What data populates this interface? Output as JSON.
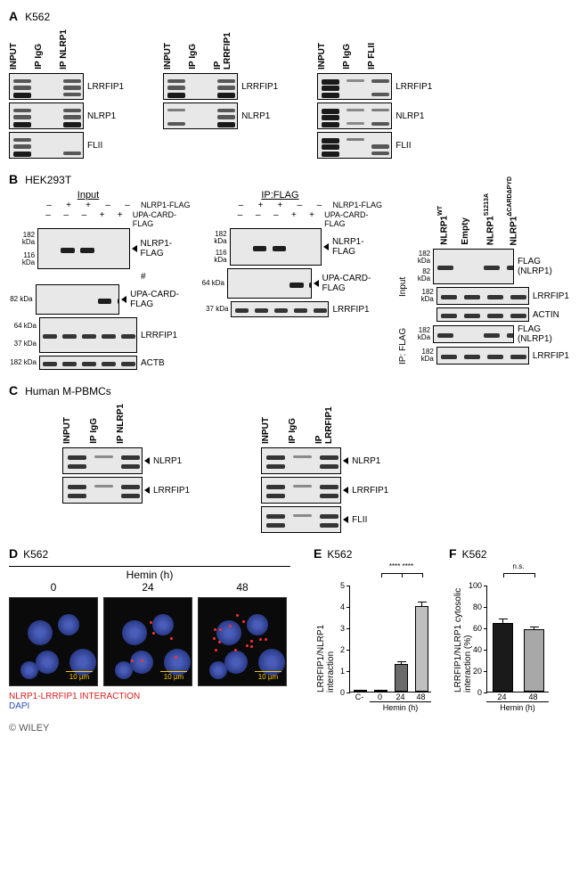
{
  "panelA": {
    "label": "A",
    "cell": "K562",
    "groups": [
      {
        "lanes": [
          "INPUT",
          "IP IgG",
          "IP NLRP1"
        ],
        "targets": [
          "LRRFIP1",
          "NLRP1",
          "FLII"
        ],
        "bands": [
          [
            [
              1,
              1,
              2
            ],
            [
              0,
              0,
              0
            ],
            [
              1,
              1,
              1
            ]
          ],
          [
            [
              1,
              1,
              2
            ],
            [
              0,
              0,
              0
            ],
            [
              1,
              1,
              2
            ]
          ],
          [
            [
              1,
              1,
              2
            ],
            [
              0,
              0,
              0
            ],
            [
              0,
              0,
              1
            ]
          ]
        ]
      },
      {
        "lanes": [
          "INPUT",
          "IP IgG",
          "IP LRRFIP1"
        ],
        "targets": [
          "LRRFIP1",
          "NLRP1"
        ],
        "bands": [
          [
            [
              1,
              1,
              2
            ],
            [
              0,
              0,
              0
            ],
            [
              1,
              1,
              2
            ]
          ],
          [
            [
              0.5,
              0,
              1
            ],
            [
              0,
              0,
              0
            ],
            [
              1,
              1,
              2
            ]
          ]
        ]
      },
      {
        "lanes": [
          "INPUT",
          "IP IgG",
          "IP FLII"
        ],
        "targets": [
          "LRRFIP1",
          "NLRP1",
          "FLII"
        ],
        "bands": [
          [
            [
              2,
              2,
              2
            ],
            [
              0.3,
              0,
              0
            ],
            [
              1,
              0,
              1
            ]
          ],
          [
            [
              2,
              2,
              2
            ],
            [
              0.3,
              0,
              0.3
            ],
            [
              0.5,
              0,
              1
            ]
          ],
          [
            [
              2,
              2,
              2
            ],
            [
              0.5,
              0,
              0
            ],
            [
              0,
              1,
              1
            ]
          ]
        ]
      }
    ]
  },
  "panelB": {
    "label": "B",
    "cell": "HEK293T",
    "left": {
      "title": "Input",
      "markers": [
        "182 kDa",
        "116 kDa",
        "82 kDa",
        "64 kDa",
        "37 kDa",
        "182 kDa",
        "116 kDa",
        "82 kDa"
      ],
      "cond": [
        {
          "name": "NLRP1-FLAG",
          "vals": [
            "–",
            "+",
            "+",
            "–",
            "–"
          ]
        },
        {
          "name": "UPA-CARD-FLAG",
          "vals": [
            "–",
            "–",
            "–",
            "+",
            "+"
          ]
        }
      ],
      "rows": [
        {
          "label": "NLRP1-FLAG",
          "arrow": true,
          "h": 46
        },
        {
          "label": "#",
          "arrow": false,
          "h": 0
        },
        {
          "label": "UPA-CARD-FLAG",
          "arrow": true,
          "h": 34
        },
        {
          "label": "LRRFIP1",
          "arrow": false,
          "h": 40
        },
        {
          "label": "ACTB",
          "arrow": false,
          "h": 16
        }
      ]
    },
    "mid": {
      "title": "IP:FLAG",
      "markers": [
        "182 kDa",
        "116 kDa",
        "64 kDa",
        "37 kDa",
        "182 kDa"
      ],
      "cond": [
        {
          "name": "NLRP1-FLAG",
          "vals": [
            "–",
            "+",
            "+",
            "–",
            "–"
          ]
        },
        {
          "name": "UPA-CARD-FLAG",
          "vals": [
            "–",
            "–",
            "–",
            "+",
            "+"
          ]
        }
      ],
      "rows": [
        {
          "label": "NLRP1-FLAG",
          "arrow": true,
          "h": 42
        },
        {
          "label": "UPA-CARD-FLAG",
          "arrow": true,
          "h": 34
        },
        {
          "label": "LRRFIP1",
          "arrow": false,
          "h": 18
        }
      ]
    },
    "right": {
      "lanes": [
        "NLRP1^WT",
        "Empty",
        "NLRP1^S1213A",
        "NLRP1^ΔCARDΔPYD"
      ],
      "groups": [
        {
          "side": "Input",
          "rows": [
            {
              "label": "FLAG (NLRP1)",
              "markers": [
                "182 kDa",
                "82 kDa"
              ],
              "h": 40
            },
            {
              "label": "LRRFIP1",
              "markers": [
                "182 kDa"
              ],
              "h": 20
            },
            {
              "label": "ACTIN",
              "markers": [],
              "h": 16
            }
          ]
        },
        {
          "side": "IP: FLAG",
          "rows": [
            {
              "label": "FLAG (NLRP1)",
              "markers": [
                "182 kDa"
              ],
              "h": 20
            },
            {
              "label": "LRRFIP1",
              "markers": [
                "182 kDa"
              ],
              "h": 20
            }
          ]
        }
      ]
    }
  },
  "panelC": {
    "label": "C",
    "cell": "Human M-PBMCs",
    "left": {
      "lanes": [
        "INPUT",
        "IP IgG",
        "IP NLRP1"
      ],
      "rows": [
        "NLRP1",
        "LRRFIP1"
      ]
    },
    "right": {
      "lanes": [
        "INPUT",
        "IP IgG",
        "IP LRRFIP1"
      ],
      "rows": [
        "NLRP1",
        "LRRFIP1",
        "FLII"
      ]
    }
  },
  "panelD": {
    "label": "D",
    "cell": "K562",
    "treatment": "Hemin (h)",
    "times": [
      "0",
      "24",
      "48"
    ],
    "legend_red": "NLRP1-LRRFIP1 INTERACTION",
    "legend_blue": "DAPI",
    "scale": "10 µm",
    "red_dots": [
      0,
      6,
      14
    ]
  },
  "panelE": {
    "label": "E",
    "cell": "K562",
    "ylabel": "LRRFIP1/NLRP1 interaction",
    "ylim": [
      0,
      5
    ],
    "ystep": 1,
    "bars": [
      {
        "x": "C-",
        "val": 0,
        "err": 0,
        "color": "#ffffff"
      },
      {
        "x": "0",
        "val": 0,
        "err": 0,
        "color": "#ffffff"
      },
      {
        "x": "24",
        "val": 1.3,
        "err": 0.15,
        "color": "#6b6b6b"
      },
      {
        "x": "48",
        "val": 4.0,
        "err": 0.25,
        "color": "#bfbfbf"
      }
    ],
    "xlabel": "Hemin  (h)",
    "sig": [
      {
        "from": 2,
        "to": 3,
        "y": 4.4,
        "text": "****"
      },
      {
        "from": 1,
        "to": 2,
        "y": 4.4,
        "text": "****",
        "via_bracket": true
      }
    ],
    "sig_bracket_text": "****    ****"
  },
  "panelF": {
    "label": "F",
    "cell": "K562",
    "ylabel": "LRRFIP1/NLRP1 cytosolic interaction (%)",
    "ylim": [
      0,
      100
    ],
    "ystep": 20,
    "bars": [
      {
        "x": "24",
        "val": 64,
        "err": 5,
        "color": "#1a1a1a"
      },
      {
        "x": "48",
        "val": 58,
        "err": 4,
        "color": "#a8a8a8"
      }
    ],
    "xlabel": "Hemin  (h)",
    "ns": "n.s."
  },
  "copyright": "© WILEY",
  "colors": {
    "red": "#d81e1e",
    "blue": "#2e4fb0",
    "yellow": "#ffcc00"
  }
}
